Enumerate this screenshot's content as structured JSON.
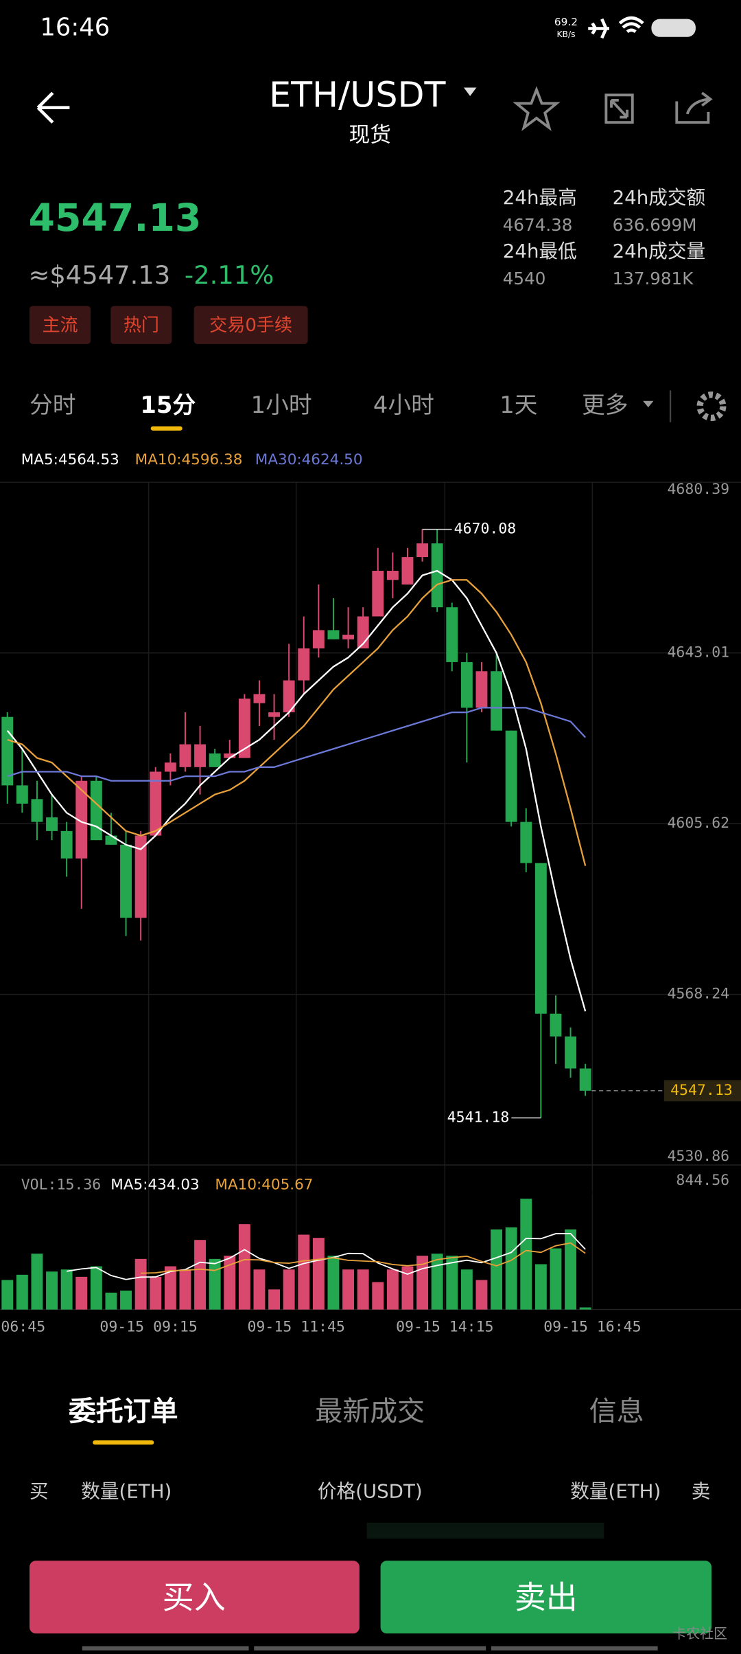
{
  "status_bar": {
    "time": "16:46",
    "net_speed": "69.2",
    "net_unit": "KB/s"
  },
  "header": {
    "pair": "ETH/USDT",
    "market": "现货"
  },
  "price": {
    "last": "4547.13",
    "usd": "≈$4547.13",
    "change": "-2.11%",
    "tags": [
      "主流",
      "热门",
      "交易0手续"
    ]
  },
  "stats": [
    {
      "label": "24h最高",
      "value": "4674.38"
    },
    {
      "label": "24h成交额",
      "value": "636.699M"
    },
    {
      "label": "24h最低",
      "value": "4540"
    },
    {
      "label": "24h成交量",
      "value": "137.981K"
    }
  ],
  "intervals": [
    "分时",
    "15分",
    "1小时",
    "4小时",
    "1天",
    "更多"
  ],
  "chart_data": {
    "type": "candlestick",
    "up_color": "#d9486f",
    "down_color": "#25a750",
    "ylim": [
      4530.86,
      4680.39
    ],
    "yticks": [
      4530.86,
      4568.24,
      4605.62,
      4643.01,
      4680.39
    ],
    "candles": [
      {
        "open": 4629,
        "high": 4630,
        "low": 4610,
        "close": 4614
      },
      {
        "open": 4614,
        "high": 4622,
        "low": 4608,
        "close": 4610
      },
      {
        "open": 4611,
        "high": 4615,
        "low": 4602,
        "close": 4606
      },
      {
        "open": 4607,
        "high": 4612,
        "low": 4602,
        "close": 4604
      },
      {
        "open": 4604,
        "high": 4606,
        "low": 4594,
        "close": 4598
      },
      {
        "open": 4598,
        "high": 4616,
        "low": 4587,
        "close": 4615
      },
      {
        "open": 4615,
        "high": 4616,
        "low": 4602,
        "close": 4602
      },
      {
        "open": 4603,
        "high": 4608,
        "low": 4601,
        "close": 4601
      },
      {
        "open": 4601,
        "high": 4604,
        "low": 4581,
        "close": 4585
      },
      {
        "open": 4585,
        "high": 4604,
        "low": 4580,
        "close": 4603
      },
      {
        "open": 4603,
        "high": 4618,
        "low": 4603,
        "close": 4617
      },
      {
        "open": 4617,
        "high": 4621,
        "low": 4614,
        "close": 4619
      },
      {
        "open": 4618,
        "high": 4630,
        "low": 4617,
        "close": 4623
      },
      {
        "open": 4618,
        "high": 4627,
        "low": 4612,
        "close": 4623
      },
      {
        "open": 4621,
        "high": 4622,
        "low": 4618,
        "close": 4618
      },
      {
        "open": 4620,
        "high": 4624,
        "low": 4620,
        "close": 4621
      },
      {
        "open": 4620,
        "high": 4634,
        "low": 4620,
        "close": 4633
      },
      {
        "open": 4632,
        "high": 4637,
        "low": 4627,
        "close": 4634
      },
      {
        "open": 4629,
        "high": 4634,
        "low": 4624,
        "close": 4630
      },
      {
        "open": 4630,
        "high": 4645,
        "low": 4629,
        "close": 4637
      },
      {
        "open": 4637,
        "high": 4651,
        "low": 4634,
        "close": 4644
      },
      {
        "open": 4644,
        "high": 4658,
        "low": 4642,
        "close": 4648
      },
      {
        "open": 4648,
        "high": 4655,
        "low": 4646,
        "close": 4646
      },
      {
        "open": 4646,
        "high": 4653,
        "low": 4644,
        "close": 4647
      },
      {
        "open": 4644,
        "high": 4653,
        "low": 4644,
        "close": 4651
      },
      {
        "open": 4651,
        "high": 4666,
        "low": 4651,
        "close": 4661
      },
      {
        "open": 4659,
        "high": 4665,
        "low": 4655,
        "close": 4661
      },
      {
        "open": 4658,
        "high": 4666,
        "low": 4658,
        "close": 4664
      },
      {
        "open": 4664,
        "high": 4670.08,
        "low": 4663,
        "close": 4667
      },
      {
        "open": 4667,
        "high": 4670,
        "low": 4652,
        "close": 4653
      },
      {
        "open": 4653,
        "high": 4654,
        "low": 4639,
        "close": 4641
      },
      {
        "open": 4641,
        "high": 4643,
        "low": 4619,
        "close": 4631
      },
      {
        "open": 4631,
        "high": 4641,
        "low": 4630,
        "close": 4639
      },
      {
        "open": 4639,
        "high": 4643,
        "low": 4626,
        "close": 4626
      },
      {
        "open": 4626,
        "high": 4626,
        "low": 4605,
        "close": 4606
      },
      {
        "open": 4606,
        "high": 4609,
        "low": 4595,
        "close": 4597
      },
      {
        "open": 4597,
        "high": 4597,
        "low": 4541.18,
        "close": 4564
      },
      {
        "open": 4564,
        "high": 4568,
        "low": 4553,
        "close": 4559
      },
      {
        "open": 4559,
        "high": 4561,
        "low": 4550,
        "close": 4552
      },
      {
        "open": 4552,
        "high": 4553,
        "low": 4546,
        "close": 4547.13
      }
    ],
    "series": [
      {
        "name": "MA5:4564.53",
        "color": "#ffffff",
        "values": [
          4626,
          4622,
          4617,
          4612,
          4608,
          4606,
          4605,
          4603,
          4601,
          4600,
          4603,
          4607,
          4610,
          4614,
          4617,
          4620,
          4622,
          4624,
          4627,
          4630,
          4634,
          4637,
          4640,
          4642,
          4645,
          4649,
          4653,
          4656,
          4660,
          4661,
          4659,
          4655,
          4649,
          4643,
          4634,
          4622,
          4605,
          4590,
          4576,
          4564.53
        ]
      },
      {
        "name": "MA10:4596.38",
        "color": "#e8a13a",
        "values": [
          4624,
          4623,
          4620,
          4619,
          4616,
          4613,
          4610,
          4607,
          4604,
          4603,
          4604,
          4606,
          4608,
          4610,
          4612,
          4613,
          4615,
          4618,
          4621,
          4624,
          4627,
          4631,
          4635,
          4638,
          4641,
          4644,
          4648,
          4651,
          4655,
          4658,
          4659,
          4659,
          4656,
          4652,
          4647,
          4641,
          4632,
          4621,
          4609,
          4596.38
        ]
      },
      {
        "name": "MA30:4624.50",
        "color": "#6b78d6",
        "values": [
          4616,
          4617,
          4617,
          4617,
          4617,
          4616,
          4616,
          4615,
          4615,
          4615,
          4615,
          4615,
          4616,
          4616,
          4616,
          4617,
          4617,
          4618,
          4618,
          4619,
          4620,
          4621,
          4622,
          4623,
          4624,
          4625,
          4626,
          4627,
          4628,
          4629,
          4630,
          4630,
          4631,
          4631,
          4631,
          4631,
          4630,
          4629,
          4628,
          4624.5
        ]
      }
    ],
    "x_labels": [
      "06:45",
      "09-15 09:15",
      "09-15 11:45",
      "09-15 14:15",
      "09-15 16:45"
    ],
    "volume": {
      "label": "VOL:15.36",
      "ylim": [
        0,
        844.56
      ],
      "yticks": [
        844.56
      ],
      "values": [
        213,
        251,
        403,
        274,
        289,
        236,
        312,
        122,
        137,
        365,
        236,
        312,
        289,
        502,
        365,
        388,
        616,
        289,
        145,
        289,
        540,
        517,
        388,
        289,
        289,
        198,
        289,
        312,
        388,
        403,
        388,
        289,
        213,
        578,
        593,
        799,
        327,
        441,
        578,
        15.36
      ],
      "series": [
        {
          "name": "MA5:434.03",
          "color": "#ffffff",
          "values": [
            null,
            null,
            null,
            null,
            276,
            293,
            303,
            245,
            217,
            234,
            235,
            274,
            288,
            341,
            331,
            371,
            432,
            369,
            339,
            297,
            332,
            356,
            376,
            405,
            403,
            336,
            293,
            255,
            295,
            318,
            338,
            356,
            338,
            374,
            412,
            513,
            511,
            547,
            548,
            434.03
          ]
        },
        {
          "name": "MA10:405.67",
          "color": "#e8a13a",
          "values": [
            null,
            null,
            null,
            null,
            null,
            null,
            null,
            null,
            null,
            262,
            265,
            280,
            283,
            291,
            282,
            322,
            360,
            358,
            339,
            334,
            351,
            362,
            373,
            355,
            350,
            345,
            325,
            316,
            326,
            360,
            374,
            385,
            347,
            315,
            355,
            426,
            412,
            460,
            480,
            405.67
          ]
        }
      ]
    }
  },
  "tabs": [
    "委托订单",
    "最新成交",
    "信息"
  ],
  "order_headers": [
    "买",
    "数量(ETH)",
    "价格(USDT)",
    "数量(ETH)",
    "卖"
  ],
  "buttons": {
    "buy": "买入",
    "sell": "卖出"
  },
  "watermark": "卡农社区"
}
